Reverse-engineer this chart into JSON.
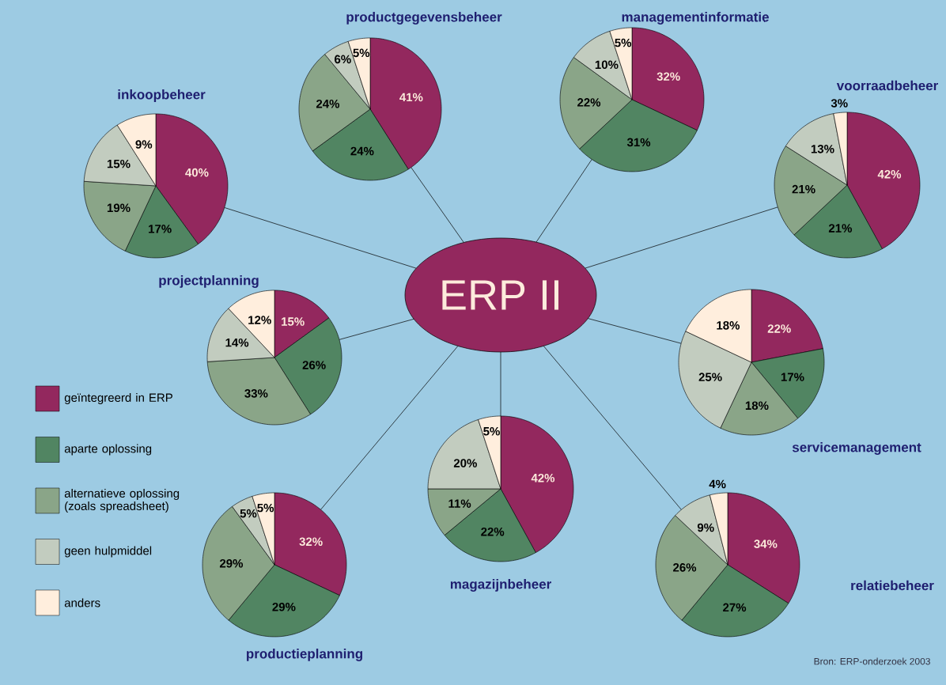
{
  "chart_data": [
    {
      "type": "pie",
      "title": "productgegevensbeheer",
      "values": [
        41,
        24,
        24,
        6,
        5
      ],
      "value_labels": [
        "41%",
        "24%",
        "24%",
        "6%",
        "5%"
      ],
      "colors": [
        "#93285e",
        "#518562",
        "#8aa588",
        "#c2ccbf",
        "#ffeedd"
      ]
    },
    {
      "type": "pie",
      "title": "managementinformatie",
      "values": [
        32,
        31,
        22,
        10,
        5
      ],
      "value_labels": [
        "32%",
        "31%",
        "22%",
        "10%",
        "5%"
      ],
      "colors": [
        "#93285e",
        "#518562",
        "#8aa588",
        "#c2ccbf",
        "#ffeedd"
      ]
    },
    {
      "type": "pie",
      "title": "inkoopbeheer",
      "values": [
        40,
        17,
        19,
        15,
        9
      ],
      "value_labels": [
        "40%",
        "17%",
        "19%",
        "15%",
        "9%"
      ],
      "colors": [
        "#93285e",
        "#518562",
        "#8aa588",
        "#c2ccbf",
        "#ffeedd"
      ]
    },
    {
      "type": "pie",
      "title": "voorraadbeheer",
      "values": [
        42,
        21,
        21,
        13,
        3
      ],
      "value_labels": [
        "42%",
        "21%",
        "21%",
        "13%",
        "3%"
      ],
      "colors": [
        "#93285e",
        "#518562",
        "#8aa588",
        "#c2ccbf",
        "#ffeedd"
      ]
    },
    {
      "type": "pie",
      "title": "projectplanning",
      "values": [
        15,
        26,
        33,
        14,
        12
      ],
      "value_labels": [
        "15%",
        "26%",
        "33%",
        "14%",
        "12%"
      ],
      "colors": [
        "#93285e",
        "#518562",
        "#8aa588",
        "#c2ccbf",
        "#ffeedd"
      ]
    },
    {
      "type": "other",
      "title": "ERP II",
      "annotations": [
        "Bron: ERP-onderzoek 2003"
      ]
    },
    {
      "type": "pie",
      "title": "servicemanagement",
      "values": [
        22,
        17,
        18,
        25,
        18
      ],
      "value_labels": [
        "22%",
        "17%",
        "18%",
        "25%",
        "18%"
      ],
      "colors": [
        "#93285e",
        "#518562",
        "#8aa588",
        "#c2ccbf",
        "#ffeedd"
      ]
    },
    {
      "type": "pie",
      "title": "magazijnbeheer",
      "values": [
        42,
        22,
        11,
        20,
        5
      ],
      "value_labels": [
        "42%",
        "22%",
        "11%",
        "20%",
        "5%"
      ],
      "colors": [
        "#93285e",
        "#518562",
        "#8aa588",
        "#c2ccbf",
        "#ffeedd"
      ]
    },
    {
      "type": "pie",
      "title": "productieplanning",
      "categories": [
        "geïntegreerd in ERP",
        "aparte oplossing",
        "alternatieve oplossing (zoals spreadsheet)",
        "geen hulpmiddel",
        "anders"
      ],
      "values": [
        32,
        29,
        29,
        5,
        5
      ],
      "value_labels": [
        "32%",
        "29%",
        "29%",
        "5%",
        "5%"
      ],
      "colors": [
        "#93285e",
        "#518562",
        "#8aa588",
        "#c2ccbf",
        "#ffeedd"
      ],
      "legend": "left"
    },
    {
      "type": "pie",
      "title": "relatiebeheer",
      "values": [
        34,
        27,
        26,
        9,
        4
      ],
      "value_labels": [
        "34%",
        "27%",
        "26%",
        "9%",
        "4%"
      ],
      "colors": [
        "#93285e",
        "#518562",
        "#8aa588",
        "#c2ccbf",
        "#ffeedd"
      ]
    }
  ]
}
